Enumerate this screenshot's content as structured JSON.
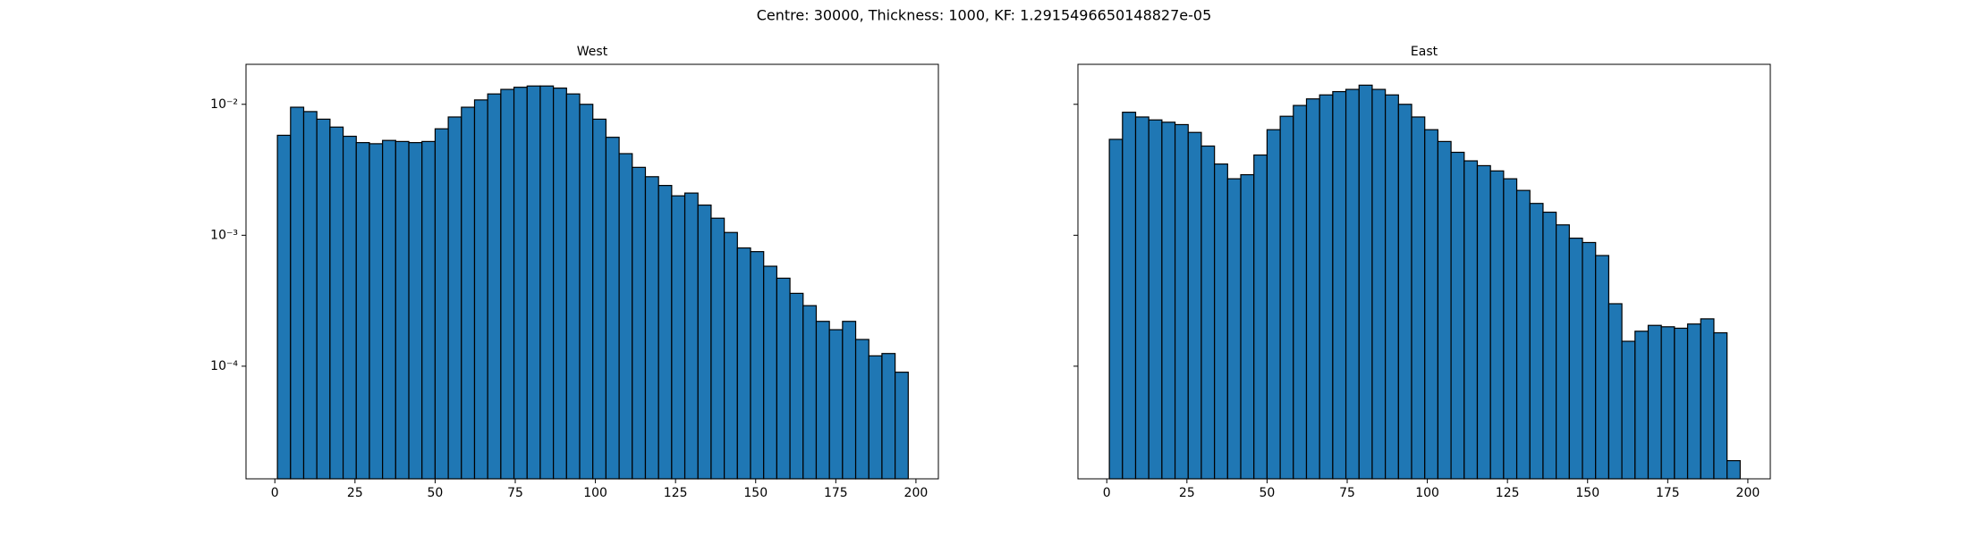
{
  "title": "Centre: 30000, Thickness: 1000, KF: 1.2915496650148827e-05",
  "chart_data": [
    {
      "type": "histogram",
      "title": "West",
      "color": "#1f77b4",
      "edgecolor": "#000000",
      "log_y": true,
      "grid": false,
      "bins": [
        0.8,
        4.9,
        9.0,
        13.1,
        17.2,
        21.3,
        25.4,
        29.5,
        33.6,
        37.7,
        41.8,
        45.9,
        50.0,
        54.1,
        58.2,
        62.3,
        66.4,
        70.5,
        74.6,
        78.7,
        82.8,
        86.9,
        91.0,
        95.1,
        99.2,
        103.3,
        107.4,
        111.5,
        115.6,
        119.7,
        123.8,
        127.9,
        132.0,
        136.1,
        140.2,
        144.3,
        148.4,
        152.5,
        156.6,
        160.7,
        164.8,
        168.9,
        173.0,
        177.1,
        181.2,
        185.3,
        189.4,
        193.5,
        197.6
      ],
      "values": [
        0.0058,
        0.0095,
        0.0088,
        0.0077,
        0.0067,
        0.0057,
        0.0051,
        0.005,
        0.0053,
        0.0052,
        0.0051,
        0.0052,
        0.0065,
        0.008,
        0.0095,
        0.0108,
        0.012,
        0.013,
        0.0135,
        0.0138,
        0.0138,
        0.0133,
        0.012,
        0.01,
        0.0077,
        0.0056,
        0.0042,
        0.0033,
        0.0028,
        0.0024,
        0.002,
        0.0021,
        0.0017,
        0.00135,
        0.00105,
        0.0008,
        0.00075,
        0.00058,
        0.00047,
        0.00036,
        0.00029,
        0.00022,
        0.00019,
        0.00022,
        0.00016,
        0.00012,
        0.000125,
        9e-05
      ],
      "xlim": [
        -9.0,
        207.0
      ],
      "xticks": [
        0,
        25,
        50,
        75,
        100,
        125,
        150,
        175,
        200
      ],
      "ylim": [
        1.38e-05,
        0.0202
      ],
      "yticks": [
        {
          "value": 0.01,
          "label": "10⁻²"
        },
        {
          "value": 0.001,
          "label": "10⁻³"
        },
        {
          "value": 0.0001,
          "label": "10⁻⁴"
        }
      ]
    },
    {
      "type": "histogram",
      "title": "East",
      "color": "#1f77b4",
      "edgecolor": "#000000",
      "log_y": true,
      "grid": false,
      "sharey": true,
      "bins": [
        0.8,
        4.9,
        9.0,
        13.1,
        17.2,
        21.3,
        25.4,
        29.5,
        33.6,
        37.7,
        41.8,
        45.9,
        50.0,
        54.1,
        58.2,
        62.3,
        66.4,
        70.5,
        74.6,
        78.7,
        82.8,
        86.9,
        91.0,
        95.1,
        99.2,
        103.3,
        107.4,
        111.5,
        115.6,
        119.7,
        123.8,
        127.9,
        132.0,
        136.1,
        140.2,
        144.3,
        148.4,
        152.5,
        156.6,
        160.7,
        164.8,
        168.9,
        173.0,
        177.1,
        181.2,
        185.3,
        189.4,
        193.5,
        197.6
      ],
      "values": [
        0.0054,
        0.0087,
        0.008,
        0.0076,
        0.0073,
        0.007,
        0.0061,
        0.0048,
        0.0035,
        0.0027,
        0.0029,
        0.0041,
        0.0064,
        0.0081,
        0.0098,
        0.011,
        0.0118,
        0.0125,
        0.013,
        0.014,
        0.013,
        0.0118,
        0.01,
        0.008,
        0.0064,
        0.0052,
        0.0043,
        0.0037,
        0.0034,
        0.0031,
        0.0027,
        0.0022,
        0.00175,
        0.0015,
        0.0012,
        0.00095,
        0.00088,
        0.0007,
        0.0003,
        0.000155,
        0.000185,
        0.000205,
        0.0002,
        0.000195,
        0.00021,
        0.00023,
        0.00018,
        1.9e-05
      ],
      "xlim": [
        -9.0,
        207.0
      ],
      "xticks": [
        0,
        25,
        50,
        75,
        100,
        125,
        150,
        175,
        200
      ]
    }
  ]
}
